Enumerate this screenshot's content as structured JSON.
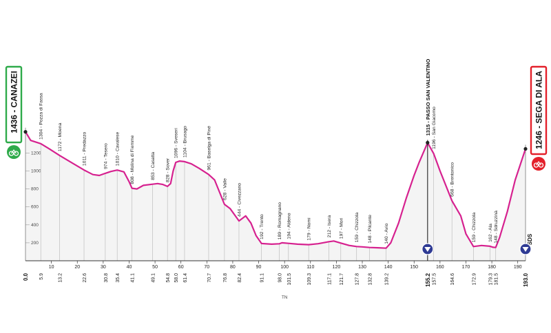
{
  "chart_data": {
    "type": "area",
    "title": "",
    "xlabel": "",
    "ylabel": "",
    "xlim": [
      0,
      193
    ],
    "ylim": [
      0,
      1500
    ],
    "y_ticks": [
      200,
      400,
      600,
      800,
      1000,
      1200
    ],
    "x_ticks": [
      10,
      20,
      30,
      40,
      50,
      60,
      70,
      80,
      90,
      100,
      110,
      120,
      130,
      140,
      150,
      160,
      170,
      180,
      190
    ],
    "colors": {
      "profile_line": "#d6218f",
      "fill": "#f4f4f4",
      "start_box": "#2eaa4a",
      "finish_box": "#e3202a",
      "kom_marker": "#2f3b94"
    },
    "start": {
      "label": "1436 - CANAZEI",
      "km": "0.0"
    },
    "finish": {
      "label": "1246 - SEGA DI ALA",
      "km": "193.0"
    },
    "finish_code": "SDS",
    "profile": [
      [
        0,
        1436
      ],
      [
        2,
        1340
      ],
      [
        5.9,
        1304
      ],
      [
        9,
        1250
      ],
      [
        13.2,
        1172
      ],
      [
        18,
        1090
      ],
      [
        22.6,
        1011
      ],
      [
        26,
        960
      ],
      [
        28.5,
        950
      ],
      [
        30.8,
        974
      ],
      [
        33,
        995
      ],
      [
        35.4,
        1010
      ],
      [
        38,
        990
      ],
      [
        40,
        880
      ],
      [
        41.1,
        808
      ],
      [
        43,
        800
      ],
      [
        45.5,
        840
      ],
      [
        49.1,
        853
      ],
      [
        51,
        860
      ],
      [
        53,
        850
      ],
      [
        54.8,
        828
      ],
      [
        56,
        860
      ],
      [
        57,
        1000
      ],
      [
        58,
        1096
      ],
      [
        59.5,
        1110
      ],
      [
        61.4,
        1104
      ],
      [
        64,
        1080
      ],
      [
        67,
        1030
      ],
      [
        70.7,
        961
      ],
      [
        73,
        900
      ],
      [
        76.8,
        628
      ],
      [
        79,
        580
      ],
      [
        82.4,
        444
      ],
      [
        85,
        500
      ],
      [
        87,
        420
      ],
      [
        89,
        280
      ],
      [
        91.1,
        192
      ],
      [
        95,
        185
      ],
      [
        98,
        189
      ],
      [
        99,
        200
      ],
      [
        101.5,
        194
      ],
      [
        105,
        185
      ],
      [
        109.3,
        179
      ],
      [
        113,
        190
      ],
      [
        117.1,
        212
      ],
      [
        119,
        220
      ],
      [
        121.7,
        197
      ],
      [
        125,
        170
      ],
      [
        127.8,
        159
      ],
      [
        130,
        155
      ],
      [
        132.8,
        148
      ],
      [
        136,
        145
      ],
      [
        139.2,
        140
      ],
      [
        141,
        200
      ],
      [
        144,
        420
      ],
      [
        147,
        700
      ],
      [
        150,
        950
      ],
      [
        152,
        1100
      ],
      [
        155.2,
        1315
      ],
      [
        157.5,
        1196
      ],
      [
        160,
        1000
      ],
      [
        164.6,
        668
      ],
      [
        168,
        500
      ],
      [
        170,
        300
      ],
      [
        172.9,
        159
      ],
      [
        176,
        170
      ],
      [
        179.3,
        162
      ],
      [
        180.5,
        150
      ],
      [
        181.5,
        148
      ],
      [
        183,
        260
      ],
      [
        186,
        550
      ],
      [
        189,
        900
      ],
      [
        193,
        1246
      ]
    ],
    "waypoints": [
      {
        "km": 5.9,
        "elev": 1304,
        "label": "1304 - Pozza di Fassa"
      },
      {
        "km": 13.2,
        "elev": 1172,
        "label": "1172 - Moena"
      },
      {
        "km": 22.6,
        "elev": 1011,
        "label": "1011 - Predazzo"
      },
      {
        "km": 30.8,
        "elev": 974,
        "label": "974 - Tesero"
      },
      {
        "km": 35.4,
        "elev": 1010,
        "label": "1010 - Cavalese"
      },
      {
        "km": 41.1,
        "elev": 808,
        "label": "808 - Molina di Fiemme"
      },
      {
        "km": 49.1,
        "elev": 853,
        "label": "853 - Casatta"
      },
      {
        "km": 54.8,
        "elev": 828,
        "label": "828 - Sover"
      },
      {
        "km": 58.0,
        "elev": 1096,
        "label": "1096 - Sveseri"
      },
      {
        "km": 61.4,
        "elev": 1104,
        "label": "1104 - Brusago"
      },
      {
        "km": 70.7,
        "elev": 961,
        "label": "961 - Baselga di Piné"
      },
      {
        "km": 76.8,
        "elev": 628,
        "label": "628 - Valle"
      },
      {
        "km": 82.4,
        "elev": 444,
        "label": "444 - Civezzano"
      },
      {
        "km": 91.1,
        "elev": 192,
        "label": "192 - Trento"
      },
      {
        "km": 98.0,
        "elev": 189,
        "label": "189 - Romagnano"
      },
      {
        "km": 101.5,
        "elev": 194,
        "label": "194 - Aldeno"
      },
      {
        "km": 109.3,
        "elev": 179,
        "label": "179 - Nomi"
      },
      {
        "km": 117.1,
        "elev": 212,
        "label": "212 - Isera"
      },
      {
        "km": 121.7,
        "elev": 197,
        "label": "197 - Mori"
      },
      {
        "km": 127.8,
        "elev": 159,
        "label": "159 - Chizzola"
      },
      {
        "km": 132.8,
        "elev": 148,
        "label": "148 - Pilcante"
      },
      {
        "km": 139.2,
        "elev": 140,
        "label": "140 - Avio"
      },
      {
        "km": 157.5,
        "elev": 1196,
        "label": "1196 - San Giacomo"
      },
      {
        "km": 164.6,
        "elev": 668,
        "label": "668 - Brentonico"
      },
      {
        "km": 172.9,
        "elev": 159,
        "label": "159 - Chizzola"
      },
      {
        "km": 179.3,
        "elev": 162,
        "label": "162 - Ala"
      },
      {
        "km": 181.5,
        "elev": 148,
        "label": "148 - Sdruzzinà"
      }
    ],
    "kom": [
      {
        "km": 155.2,
        "elev": 1315,
        "label": "1315 - PASSO SAN VALENTINO"
      },
      {
        "km": 193.0,
        "elev": 1246,
        "label": ""
      }
    ],
    "km_labels": [
      {
        "km": 0.0,
        "text": "0.0",
        "bold": true
      },
      {
        "km": 5.9,
        "text": "5.9"
      },
      {
        "km": 13.2,
        "text": "13.2"
      },
      {
        "km": 22.6,
        "text": "22.6"
      },
      {
        "km": 30.8,
        "text": "30.8"
      },
      {
        "km": 35.4,
        "text": "35.4"
      },
      {
        "km": 41.1,
        "text": "41.1"
      },
      {
        "km": 49.1,
        "text": "49.1"
      },
      {
        "km": 54.8,
        "text": "54.8"
      },
      {
        "km": 58.0,
        "text": "58.0"
      },
      {
        "km": 61.4,
        "text": "61.4"
      },
      {
        "km": 70.7,
        "text": "70.7"
      },
      {
        "km": 76.8,
        "text": "76.8"
      },
      {
        "km": 82.4,
        "text": "82.4"
      },
      {
        "km": 91.1,
        "text": "91.1"
      },
      {
        "km": 98.0,
        "text": "98.0"
      },
      {
        "km": 101.5,
        "text": "101.5"
      },
      {
        "km": 109.3,
        "text": "109.3"
      },
      {
        "km": 117.1,
        "text": "117.1"
      },
      {
        "km": 121.7,
        "text": "121.7"
      },
      {
        "km": 127.8,
        "text": "127.8"
      },
      {
        "km": 132.8,
        "text": "132.8"
      },
      {
        "km": 139.2,
        "text": "139.2"
      },
      {
        "km": 155.2,
        "text": "155.2",
        "bold": true
      },
      {
        "km": 157.5,
        "text": "157.5"
      },
      {
        "km": 164.6,
        "text": "164.6"
      },
      {
        "km": 172.9,
        "text": "172.9"
      },
      {
        "km": 179.3,
        "text": "179.3"
      },
      {
        "km": 181.5,
        "text": "181.5"
      },
      {
        "km": 193.0,
        "text": "193.0",
        "bold": true
      }
    ],
    "tn_label": "TN"
  }
}
